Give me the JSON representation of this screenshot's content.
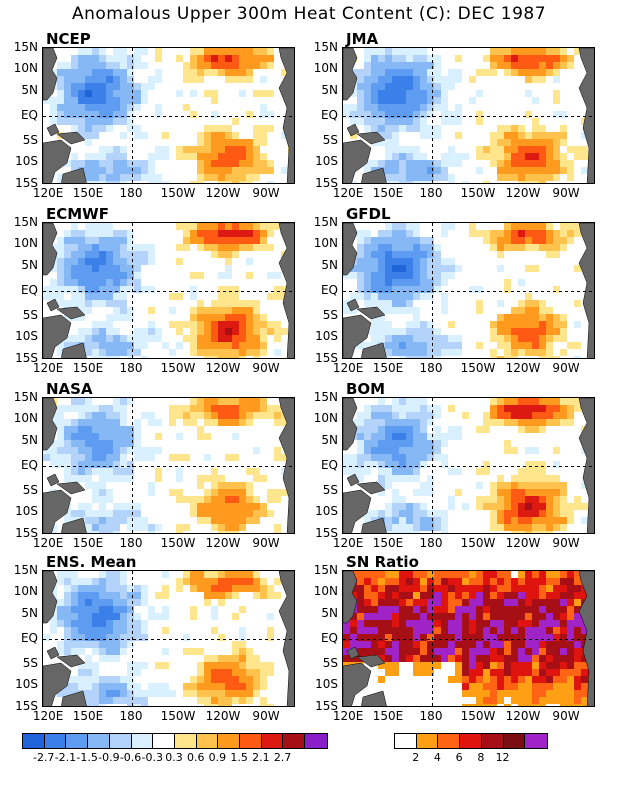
{
  "title": "Anomalous Upper 300m Heat Content (C): DEC 1987",
  "lat_labels": [
    "15N",
    "10N",
    "5N",
    "EQ",
    "5S",
    "10S",
    "15S"
  ],
  "lon_labels": [
    "120E",
    "150E",
    "180",
    "150W",
    "120W",
    "90W"
  ],
  "panels": [
    {
      "name": "NCEP",
      "kind": "anom",
      "warm_east": 1.3,
      "cold_west": 1.2,
      "seed": 3
    },
    {
      "name": "JMA",
      "kind": "anom",
      "warm_east": 1.4,
      "cold_west": 1.3,
      "seed": 7
    },
    {
      "name": "ECMWF",
      "kind": "anom",
      "warm_east": 1.6,
      "cold_west": 1.1,
      "seed": 11
    },
    {
      "name": "GFDL",
      "kind": "anom",
      "warm_east": 1.2,
      "cold_west": 1.3,
      "seed": 17
    },
    {
      "name": "NASA",
      "kind": "anom",
      "warm_east": 1.1,
      "cold_west": 0.9,
      "seed": 23
    },
    {
      "name": "BOM",
      "kind": "anom",
      "warm_east": 1.7,
      "cold_west": 1.0,
      "seed": 29
    },
    {
      "name": "ENS. Mean",
      "kind": "anom",
      "warm_east": 1.2,
      "cold_west": 1.2,
      "seed": 31
    },
    {
      "name": "SN Ratio",
      "kind": "snr",
      "warm_east": 1.0,
      "cold_west": 1.0,
      "seed": 37
    }
  ],
  "anom_colorbar": {
    "colors": [
      "#1f64d8",
      "#3a80e8",
      "#5d9cf0",
      "#86b8f5",
      "#b3d3fa",
      "#d8f0ff",
      "#ffffff",
      "#ffe68c",
      "#ffc24d",
      "#ff9a1e",
      "#ff5a14",
      "#dd1a12",
      "#a50f15",
      "#8a1ec8"
    ],
    "labels": [
      "-2.7",
      "-2.1",
      "-1.5",
      "-0.9",
      "-0.6",
      "-0.3",
      "0.3",
      "0.6",
      "0.9",
      "1.5",
      "2.1",
      "2.7"
    ]
  },
  "snr_colorbar": {
    "colors": [
      "#ffffff",
      "#ffa014",
      "#ff6414",
      "#e0140e",
      "#a50f15",
      "#7a0e12",
      "#a023c8"
    ],
    "labels": [
      "2",
      "4",
      "6",
      "8",
      "12"
    ]
  },
  "land_color": "#666666"
}
